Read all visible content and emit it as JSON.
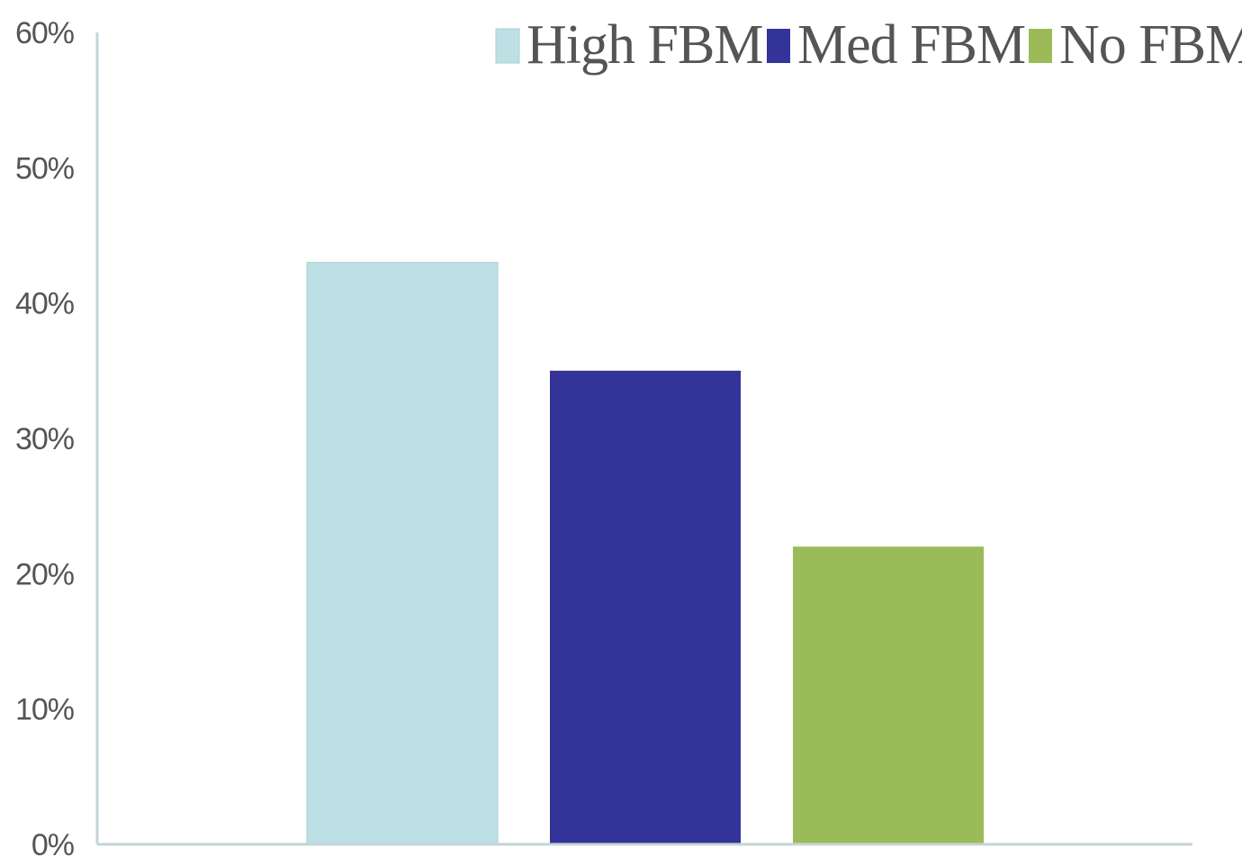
{
  "chart_data": {
    "type": "bar",
    "title": "",
    "xlabel": "",
    "ylabel": "",
    "ylim": [
      0,
      60
    ],
    "yticks": [
      0,
      10,
      20,
      30,
      40,
      50,
      60
    ],
    "ytick_labels": [
      "0%",
      "10%",
      "20%",
      "30%",
      "40%",
      "50%",
      "60%"
    ],
    "grid": false,
    "legend_position": "top-right",
    "series": [
      {
        "name": "High FBM",
        "values": [
          43
        ],
        "color": "#bde0e5"
      },
      {
        "name": "Med FBM",
        "values": [
          35
        ],
        "color": "#333399"
      },
      {
        "name": "No FBM",
        "values": [
          22
        ],
        "color": "#9bbb59"
      }
    ]
  }
}
